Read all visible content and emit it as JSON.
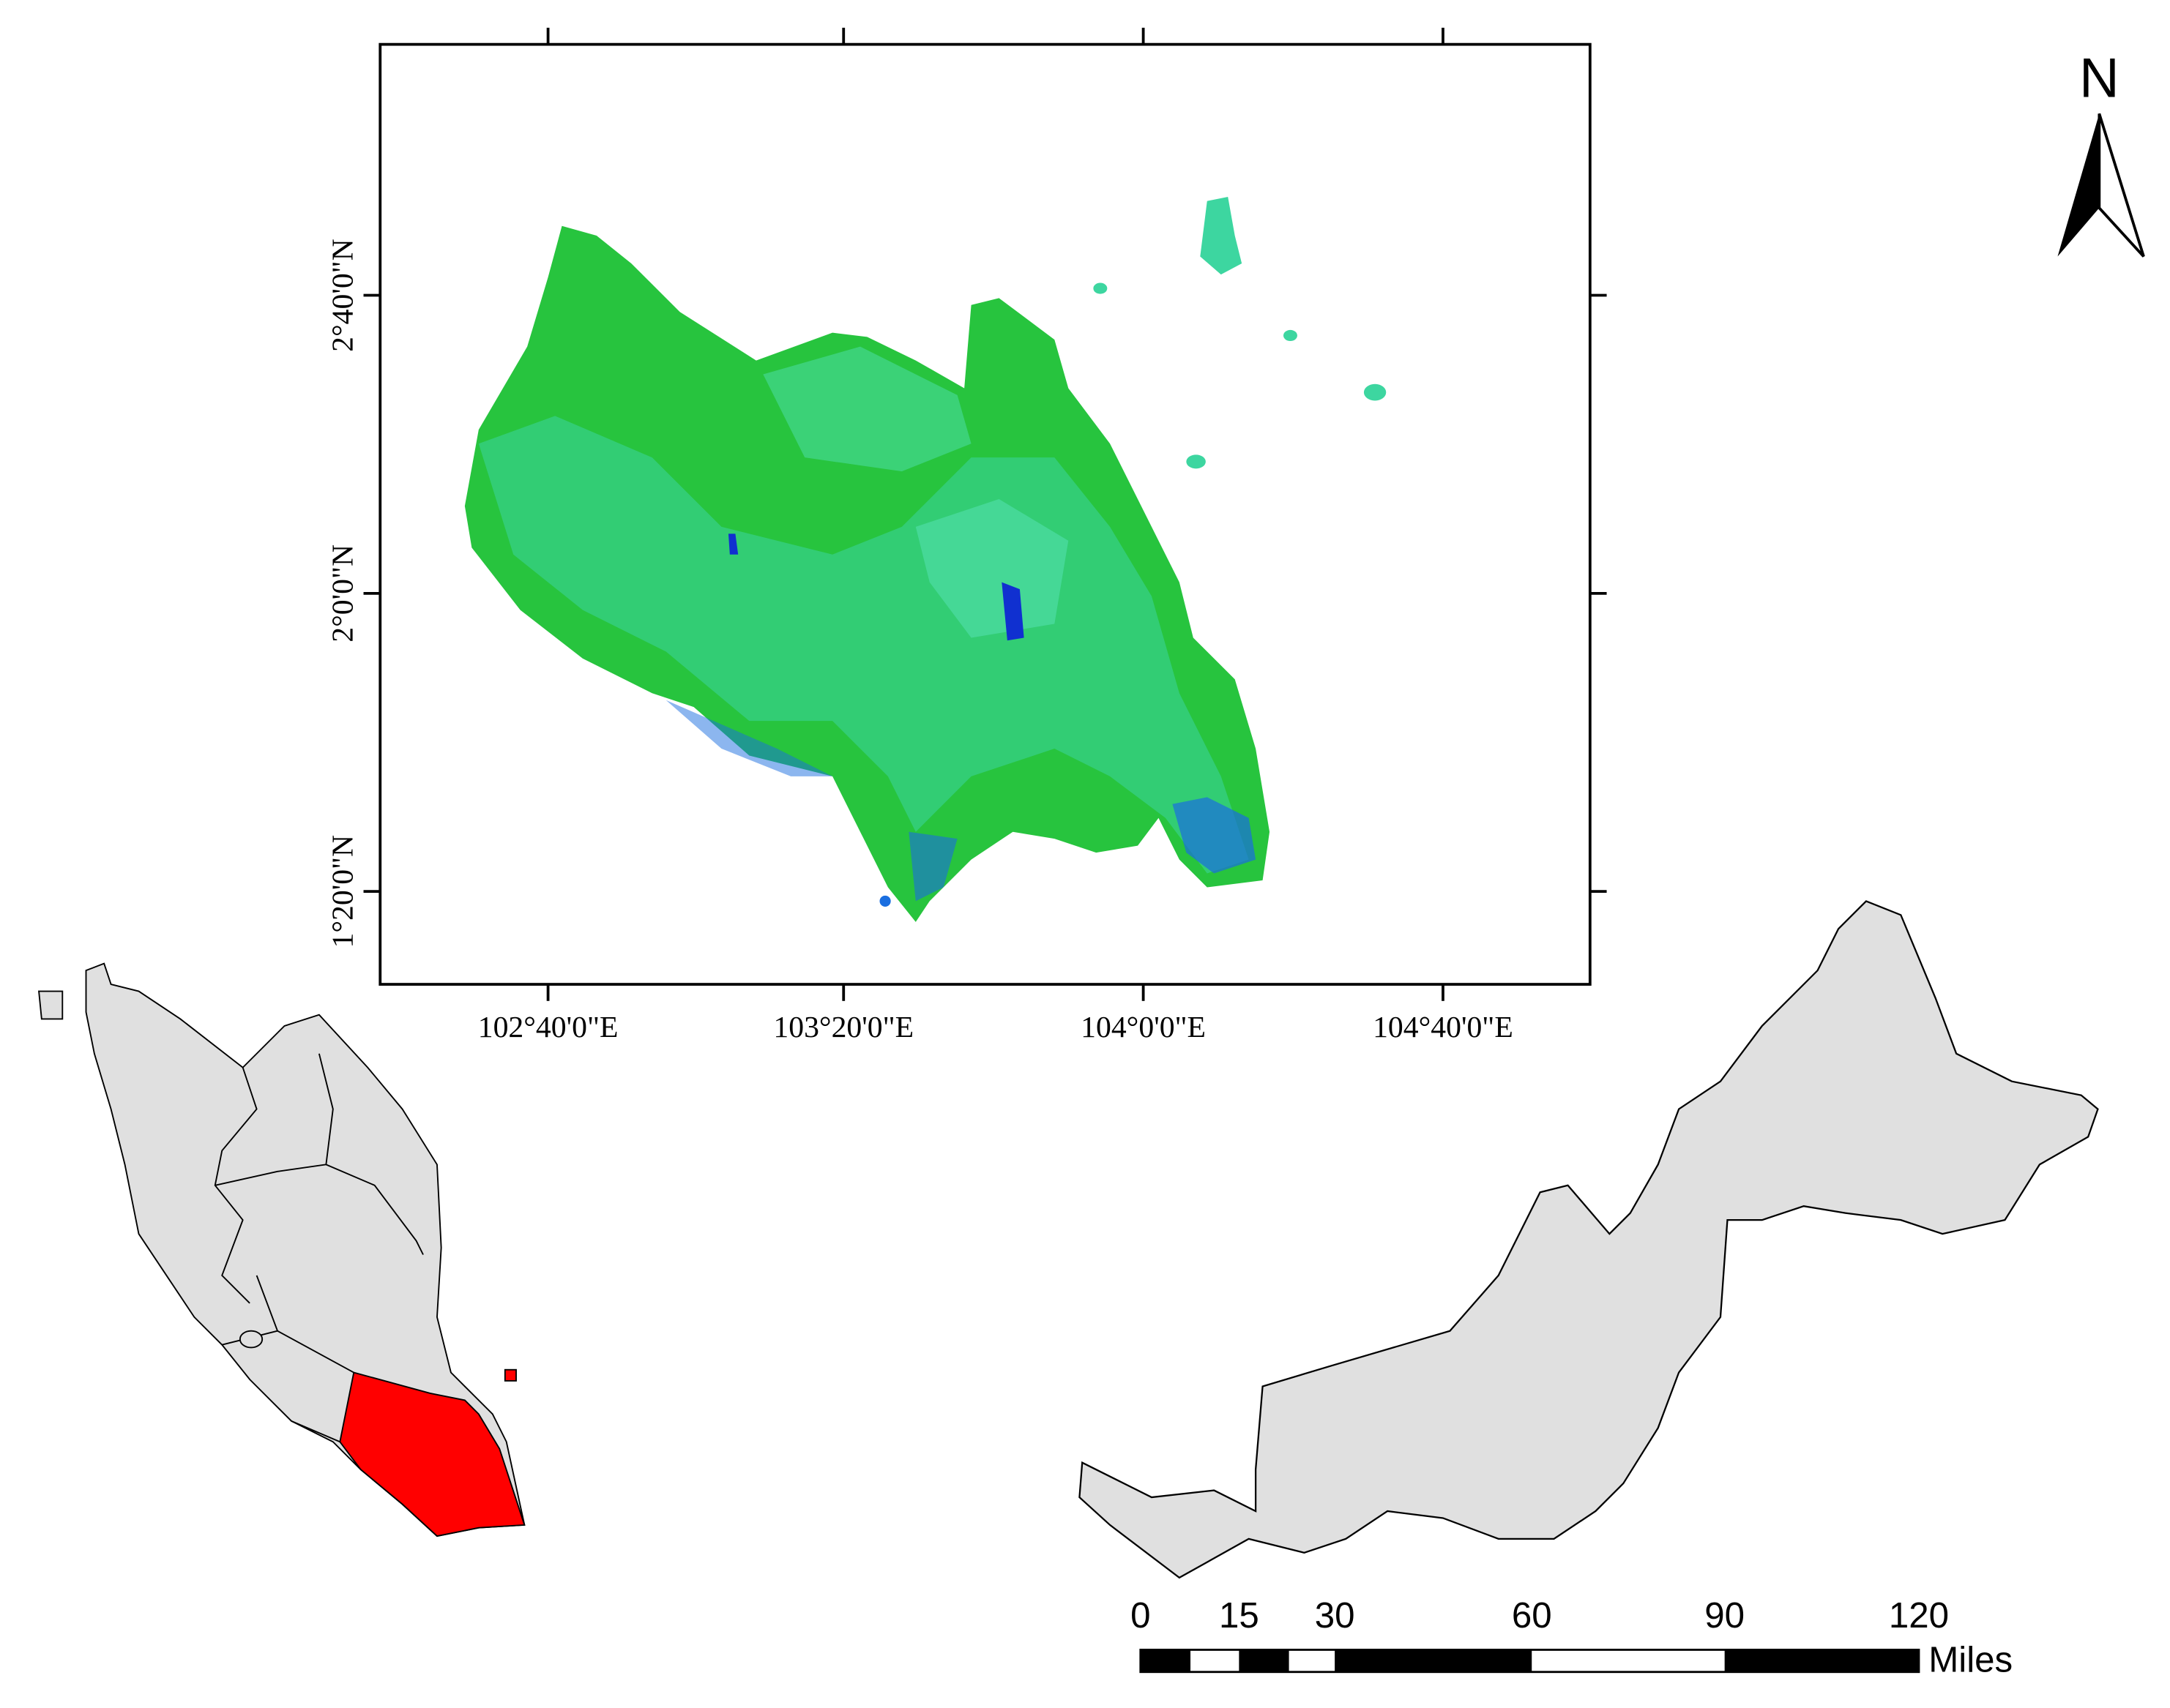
{
  "map": {
    "longitude_labels": [
      "102°40'0\"E",
      "103°20'0\"E",
      "104°0'0\"E",
      "104°40'0\"E"
    ],
    "latitude_labels": [
      "2°40'0\"N",
      "2°0'0\"N",
      "1°20'0\"N"
    ],
    "north_arrow": "N",
    "scale_bar": {
      "labels": [
        0,
        15,
        30,
        60,
        90,
        120
      ],
      "unit": "Miles"
    }
  }
}
